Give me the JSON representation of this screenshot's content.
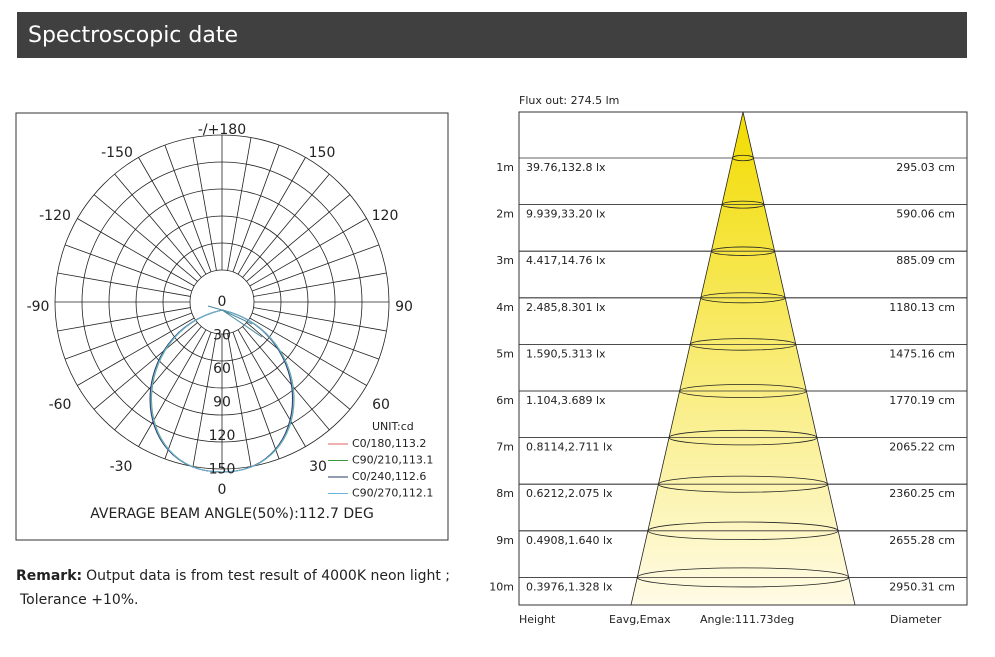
{
  "header": {
    "title": "Spectroscopic date"
  },
  "polar": {
    "angle_labels": [
      {
        "text": "-/+180",
        "deg": 180
      },
      {
        "text": "-150",
        "deg": -150
      },
      {
        "text": "150",
        "deg": 150
      },
      {
        "text": "-120",
        "deg": -120
      },
      {
        "text": "120",
        "deg": 120
      },
      {
        "text": "-90",
        "deg": -90
      },
      {
        "text": "90",
        "deg": 90
      },
      {
        "text": "-60",
        "deg": -60
      },
      {
        "text": "60",
        "deg": 60
      },
      {
        "text": "-30",
        "deg": -30
      },
      {
        "text": "30",
        "deg": 30
      },
      {
        "text": "0",
        "deg": 0
      }
    ],
    "radial_labels": [
      "0",
      "30",
      "60",
      "90",
      "120",
      "150"
    ],
    "unit": "UNIT:cd",
    "legend": [
      {
        "label": "C0/180,113.2",
        "color": "#e06060"
      },
      {
        "label": "C90/210,113.1",
        "color": "#3a9a3a"
      },
      {
        "label": "C0/240,112.6",
        "color": "#2a3a6a"
      },
      {
        "label": "C90/270,112.1",
        "color": "#6ab4dc"
      }
    ],
    "beam_angle": "AVERAGE BEAM ANGLE(50%):112.7 DEG"
  },
  "remark": {
    "label": "Remark:",
    "text": "Output data is from test result of 4000K neon light ;",
    "text2": "Tolerance +10%."
  },
  "cone": {
    "flux": "Flux out: 274.5 lm",
    "rows": [
      {
        "height": "1m",
        "eavg": "39.76,132.8 lx",
        "diameter": "295.03 cm"
      },
      {
        "height": "2m",
        "eavg": "9.939,33.20 lx",
        "diameter": "590.06 cm"
      },
      {
        "height": "3m",
        "eavg": "4.417,14.76 lx",
        "diameter": "885.09 cm"
      },
      {
        "height": "4m",
        "eavg": "2.485,8.301 lx",
        "diameter": "1180.13 cm"
      },
      {
        "height": "5m",
        "eavg": "1.590,5.313 lx",
        "diameter": "1475.16 cm"
      },
      {
        "height": "6m",
        "eavg": "1.104,3.689 lx",
        "diameter": "1770.19 cm"
      },
      {
        "height": "7m",
        "eavg": "0.8114,2.711 lx",
        "diameter": "2065.22 cm"
      },
      {
        "height": "8m",
        "eavg": "0.6212,2.075 lx",
        "diameter": "2360.25 cm"
      },
      {
        "height": "9m",
        "eavg": "0.4908,1.640 lx",
        "diameter": "2655.28 cm"
      },
      {
        "height": "10m",
        "eavg": "0.3976,1.328 lx",
        "diameter": "2950.31 cm"
      }
    ],
    "footer": [
      "Height",
      "Eavg,Emax",
      "Angle:111.73deg",
      "Diameter"
    ]
  }
}
